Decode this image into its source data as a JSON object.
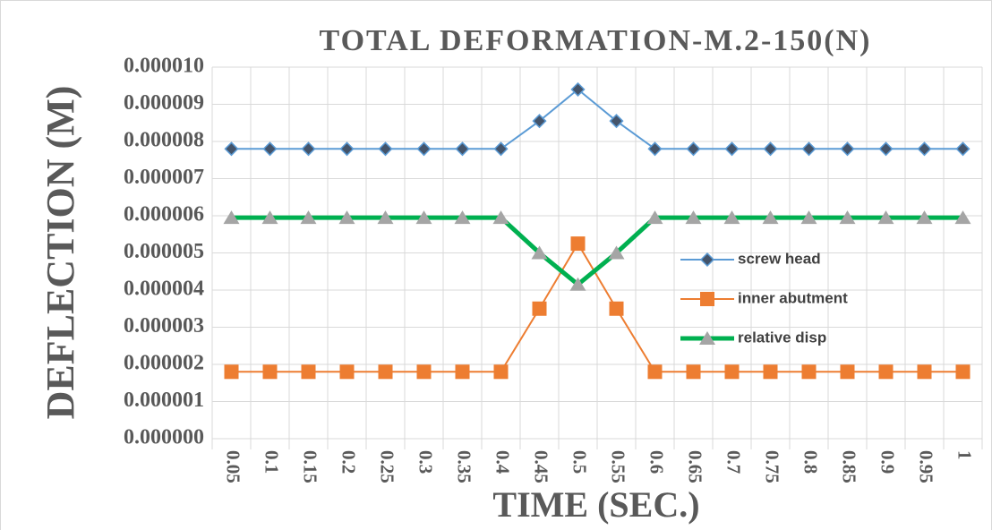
{
  "chart_data": {
    "type": "line",
    "title": "TOTAL DEFORMATION-M.2-150(N)",
    "x_label": "TIME (SEC.)",
    "y_label": "DEFLECTION (M)",
    "categories": [
      "0.05",
      "0.1",
      "0.15",
      "0.2",
      "0.25",
      "0.3",
      "0.35",
      "0.4",
      "0.45",
      "0.5",
      "0.55",
      "0.6",
      "0.65",
      "0.7",
      "0.75",
      "0.8",
      "0.85",
      "0.9",
      "0.95",
      "1"
    ],
    "series": [
      {
        "name": "screw head",
        "color": "#5b9bd5",
        "marker": "diamond",
        "values": [
          7.8e-06,
          7.8e-06,
          7.8e-06,
          7.8e-06,
          7.8e-06,
          7.8e-06,
          7.8e-06,
          7.8e-06,
          8.55e-06,
          9.4e-06,
          8.55e-06,
          7.8e-06,
          7.8e-06,
          7.8e-06,
          7.8e-06,
          7.8e-06,
          7.8e-06,
          7.8e-06,
          7.8e-06,
          7.8e-06
        ]
      },
      {
        "name": "inner abutment",
        "color": "#ed7d31",
        "marker": "square",
        "values": [
          1.8e-06,
          1.8e-06,
          1.8e-06,
          1.8e-06,
          1.8e-06,
          1.8e-06,
          1.8e-06,
          1.8e-06,
          3.5e-06,
          5.25e-06,
          3.5e-06,
          1.8e-06,
          1.8e-06,
          1.8e-06,
          1.8e-06,
          1.8e-06,
          1.8e-06,
          1.8e-06,
          1.8e-06,
          1.8e-06
        ]
      },
      {
        "name": "relative disp",
        "color": "#00b050",
        "marker": "triangle",
        "values": [
          5.95e-06,
          5.95e-06,
          5.95e-06,
          5.95e-06,
          5.95e-06,
          5.95e-06,
          5.95e-06,
          5.95e-06,
          5e-06,
          4.15e-06,
          5e-06,
          5.95e-06,
          5.95e-06,
          5.95e-06,
          5.95e-06,
          5.95e-06,
          5.95e-06,
          5.95e-06,
          5.95e-06,
          5.95e-06
        ]
      }
    ],
    "ylim": [
      0,
      1e-05
    ],
    "yticks": [
      {
        "value": 0,
        "label": "0.000000"
      },
      {
        "value": 1e-06,
        "label": "0.000001"
      },
      {
        "value": 2e-06,
        "label": "0.000002"
      },
      {
        "value": 3e-06,
        "label": "0.000003"
      },
      {
        "value": 4e-06,
        "label": "0.000004"
      },
      {
        "value": 5e-06,
        "label": "0.000005"
      },
      {
        "value": 6e-06,
        "label": "0.000006"
      },
      {
        "value": 7e-06,
        "label": "0.000007"
      },
      {
        "value": 8e-06,
        "label": "0.000008"
      },
      {
        "value": 9e-06,
        "label": "0.000009"
      },
      {
        "value": 1e-05,
        "label": "0.000010"
      }
    ],
    "grid": true,
    "legend": "right"
  }
}
